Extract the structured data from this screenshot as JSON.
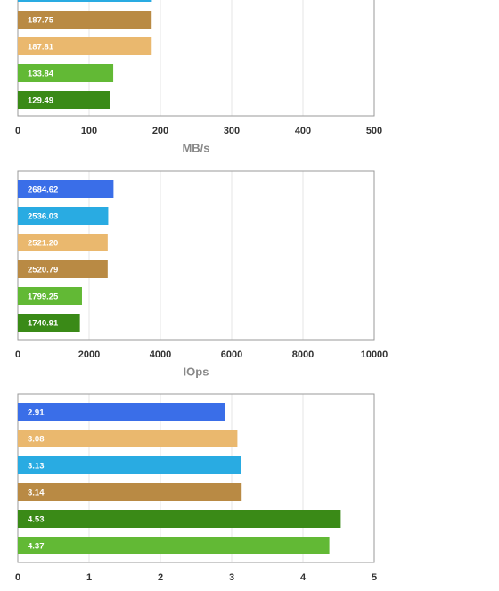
{
  "chart_data": [
    {
      "type": "bar",
      "orientation": "horizontal",
      "x_label": "MB/s",
      "values": [
        188,
        187.75,
        187.81,
        133.84,
        129.49
      ],
      "value_labels": [
        null,
        "187.75",
        "187.81",
        "133.84",
        "129.49"
      ],
      "colors": [
        "#29abe2",
        "#b98a44",
        "#eab86e",
        "#62b935",
        "#3a8a17"
      ],
      "xlim": [
        0,
        500
      ],
      "xticks": [
        0,
        100,
        200,
        300,
        400,
        500
      ],
      "grid": true
    },
    {
      "type": "bar",
      "orientation": "horizontal",
      "x_label": "IOps",
      "values": [
        2684.62,
        2536.03,
        2521.2,
        2520.79,
        1799.25,
        1740.91
      ],
      "value_labels": [
        "2684.62",
        "2536.03",
        "2521.20",
        "2520.79",
        "1799.25",
        "1740.91"
      ],
      "colors": [
        "#3a6ee8",
        "#29abe2",
        "#eab86e",
        "#b98a44",
        "#62b935",
        "#3a8a17"
      ],
      "xlim": [
        0,
        10000
      ],
      "xticks": [
        0,
        2000,
        4000,
        6000,
        8000,
        10000
      ],
      "grid": true
    },
    {
      "type": "bar",
      "orientation": "horizontal",
      "values": [
        2.91,
        3.08,
        3.13,
        3.14,
        4.53,
        4.37
      ],
      "value_labels": [
        "2.91",
        "3.08",
        "3.13",
        "3.14",
        "4.53",
        "4.37"
      ],
      "colors": [
        "#3a6ee8",
        "#eab86e",
        "#29abe2",
        "#b98a44",
        "#3a8a17",
        "#62b935"
      ],
      "xlim": [
        0,
        5
      ],
      "xticks": [
        0,
        1,
        2,
        3,
        4,
        5
      ],
      "grid": true
    }
  ]
}
